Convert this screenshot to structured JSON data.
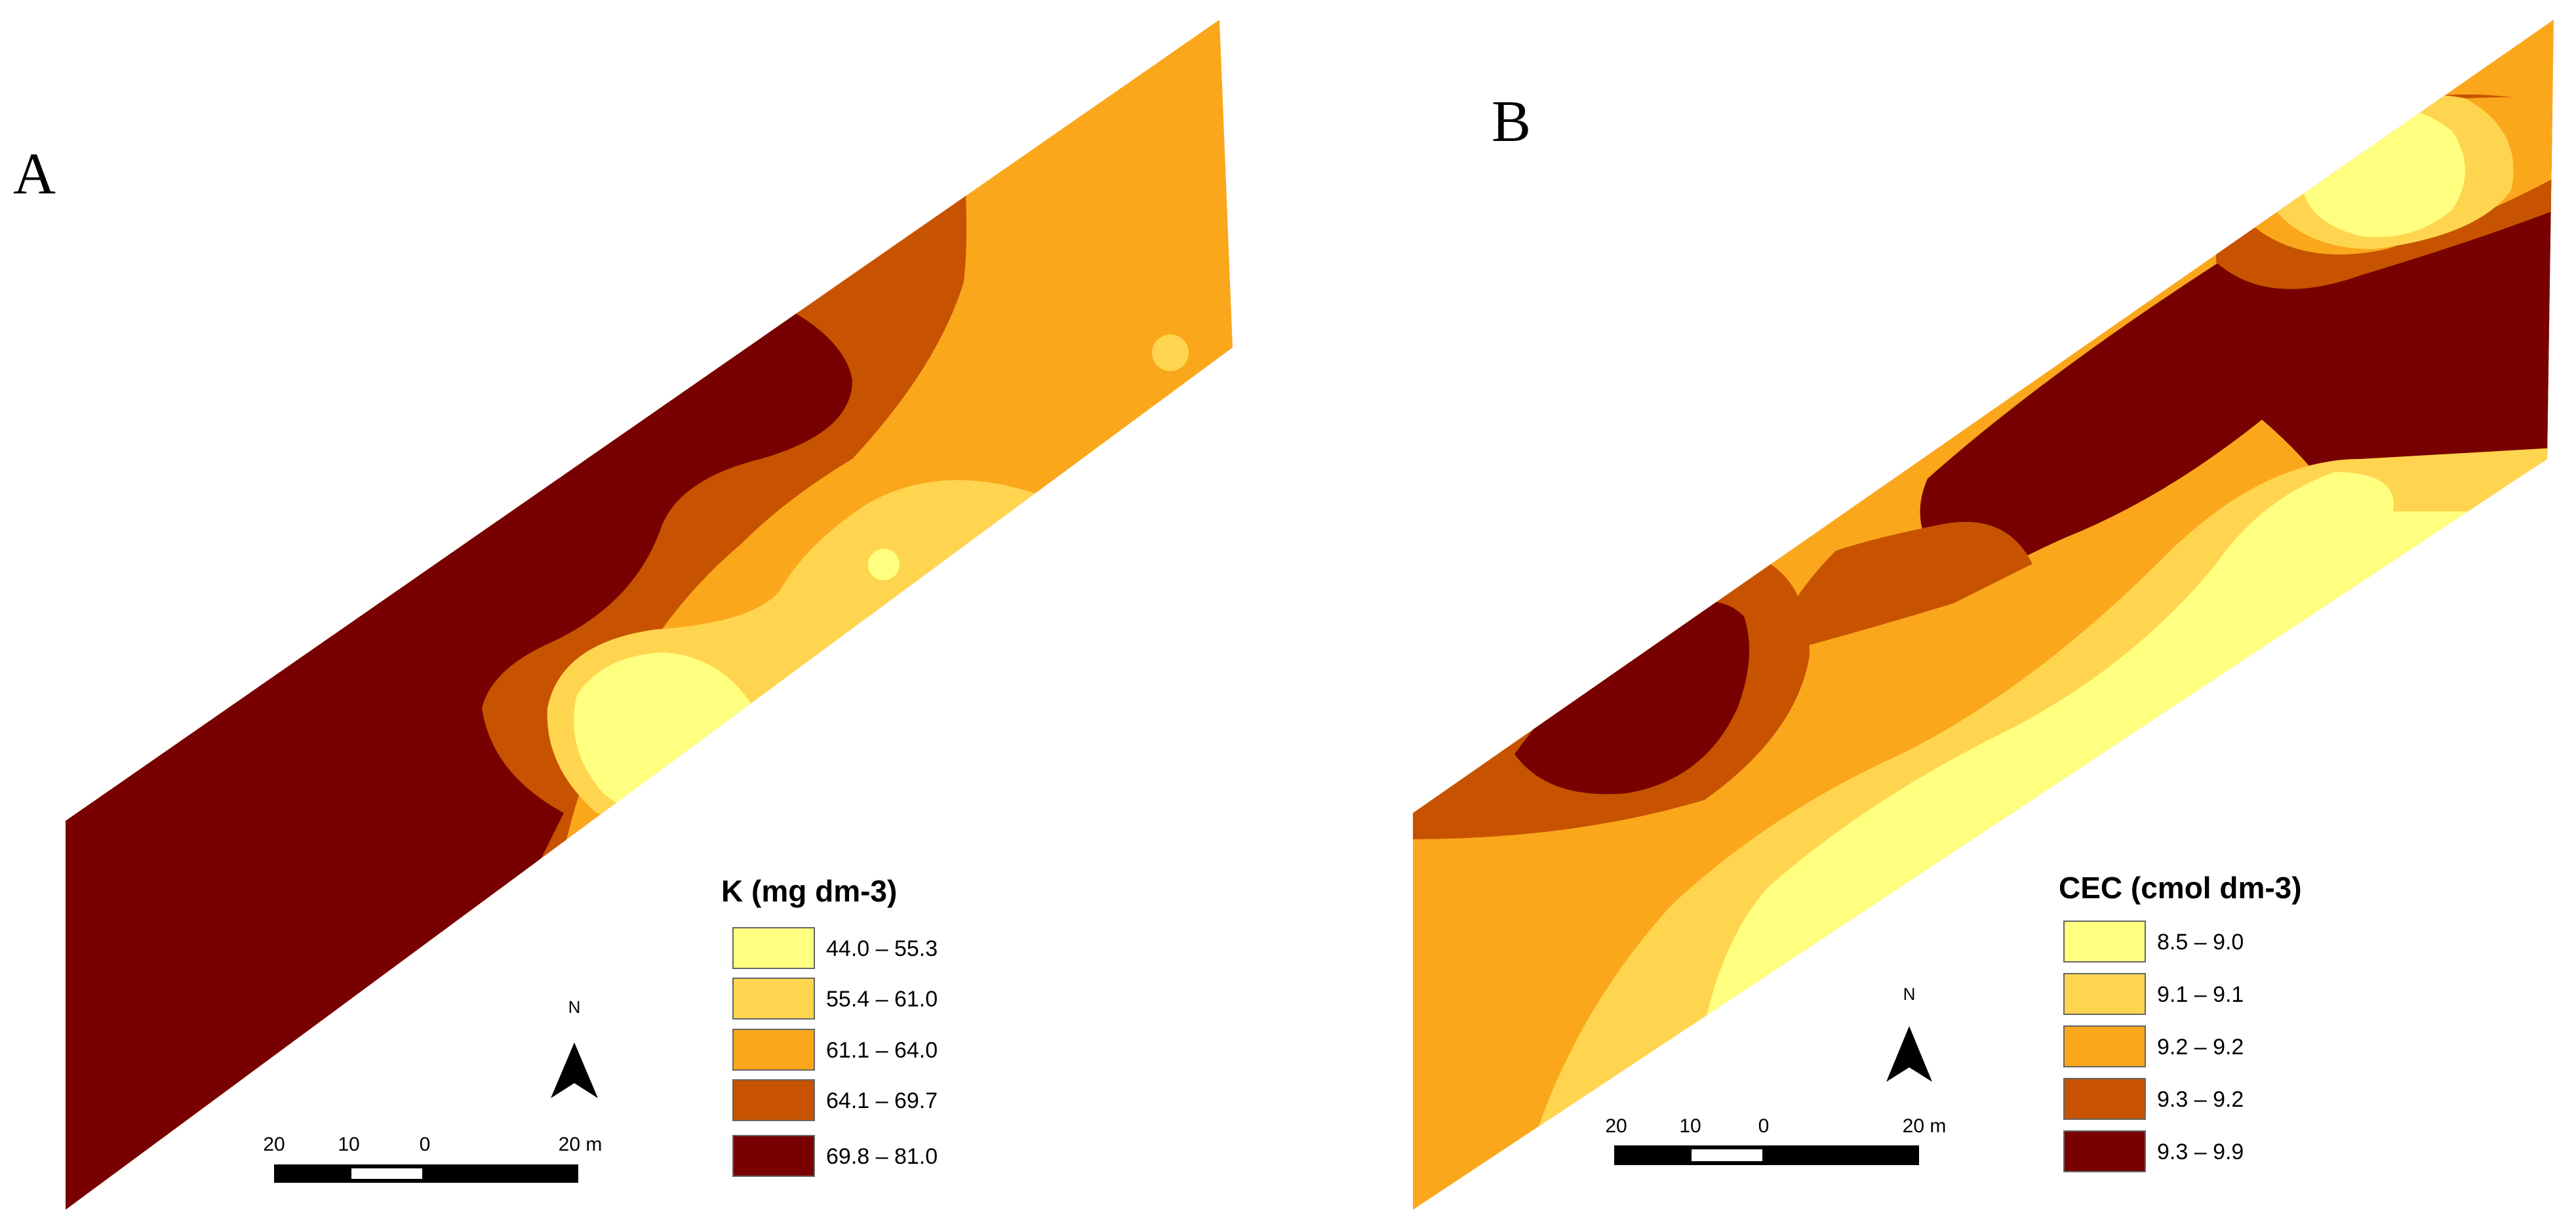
{
  "colors": {
    "class1": "#ffff80",
    "class2": "#ffd54f",
    "class3": "#fba71c",
    "class4": "#c75300",
    "class5": "#780000"
  },
  "maps": [
    {
      "panel_label": "A",
      "legend_title": "K (mg dm-3)",
      "legend_items": [
        {
          "label": "44.0 – 55.3",
          "color": "#ffff80"
        },
        {
          "label": "55.4 – 61.0",
          "color": "#ffd54f"
        },
        {
          "label": "61.1 – 64.0",
          "color": "#fba71c"
        },
        {
          "label": "64.1 – 69.7",
          "color": "#c75300"
        },
        {
          "label": "69.8 – 81.0",
          "color": "#780000"
        }
      ],
      "north_label": "N",
      "north_icon": "north-arrow-icon",
      "scale_labels": [
        "20",
        "10",
        "0",
        "20 m"
      ]
    },
    {
      "panel_label": "B",
      "legend_title": "CEC (cmol dm-3)",
      "legend_items": [
        {
          "label": "8.5 – 9.0",
          "color": "#ffff80"
        },
        {
          "label": "9.1 – 9.1",
          "color": "#ffd54f"
        },
        {
          "label": "9.2 – 9.2",
          "color": "#fba71c"
        },
        {
          "label": "9.3 – 9.2",
          "color": "#c75300"
        },
        {
          "label": "9.3 – 9.9",
          "color": "#780000"
        }
      ],
      "north_label": "N",
      "north_icon": "north-arrow-icon",
      "scale_labels": [
        "20",
        "10",
        "0",
        "20 m"
      ]
    }
  ]
}
